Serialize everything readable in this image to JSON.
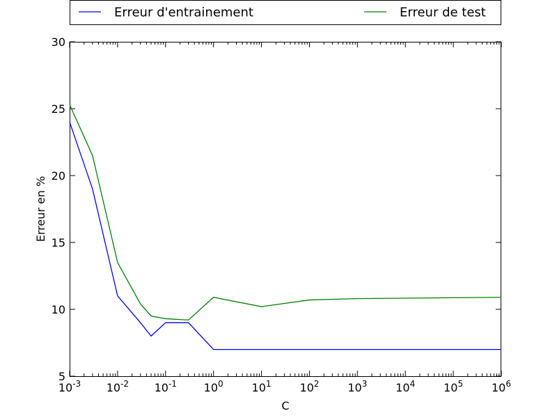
{
  "chart_data": {
    "type": "line",
    "xscale": "log",
    "xlabel": "C",
    "ylabel": "Erreur en %",
    "xlim": [
      0.001,
      1000000
    ],
    "ylim": [
      5,
      30
    ],
    "x_tick_exponents": [
      "-3",
      "-2",
      "-1",
      "0",
      "1",
      "2",
      "3",
      "4",
      "5",
      "6"
    ],
    "x_tick_base": "10",
    "y_ticks": [
      "5",
      "10",
      "15",
      "20",
      "25",
      "30"
    ],
    "grid": false,
    "legend_position": "top (above plot)",
    "series": [
      {
        "name": "Erreur d'entrainement",
        "color": "#0000ff",
        "x": [
          0.001,
          0.003,
          0.01,
          0.03,
          0.05,
          0.1,
          0.3,
          1,
          10,
          100,
          1000,
          1000000
        ],
        "y": [
          24,
          19,
          11,
          9,
          8,
          9,
          9,
          7,
          7,
          7,
          7,
          7
        ]
      },
      {
        "name": "Erreur de test",
        "color": "#008000",
        "x": [
          0.001,
          0.003,
          0.01,
          0.03,
          0.05,
          0.1,
          0.3,
          1,
          10,
          100,
          1000,
          1000000
        ],
        "y": [
          25.3,
          21.5,
          13.5,
          10.4,
          9.5,
          9.3,
          9.2,
          10.9,
          10.2,
          10.7,
          10.8,
          10.9
        ]
      }
    ]
  }
}
